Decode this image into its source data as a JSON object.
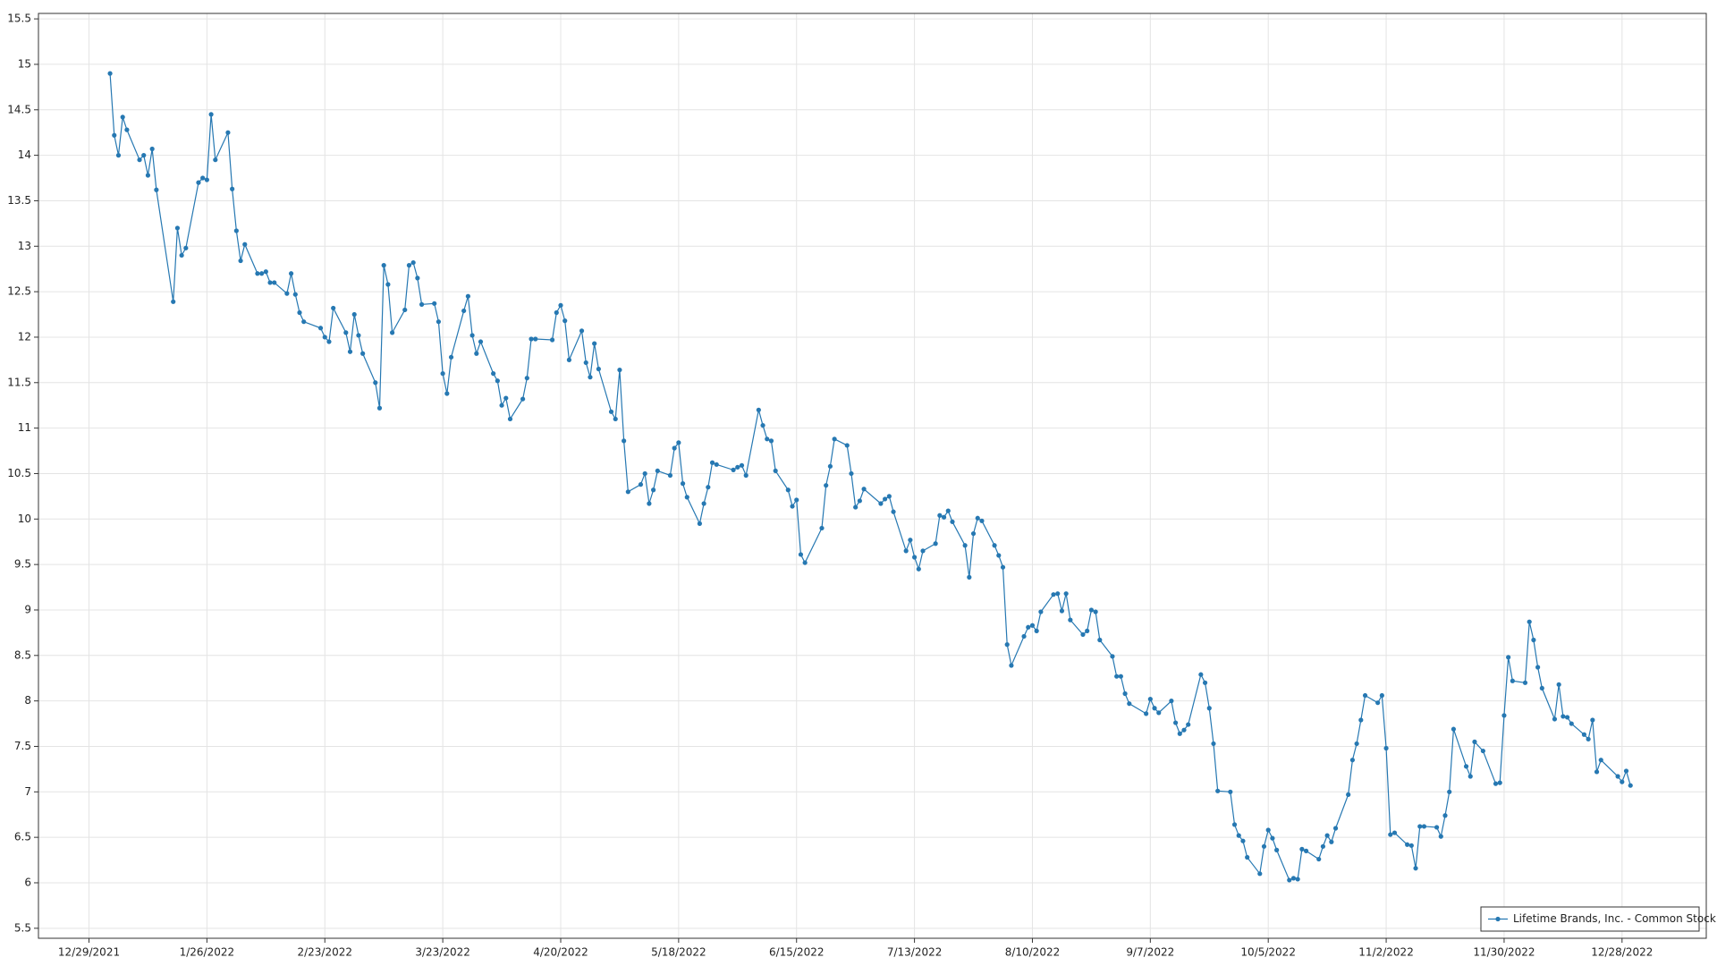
{
  "chart_data": {
    "type": "line",
    "series": [
      {
        "name": "Lifetime Brands, Inc. - Common Stock",
        "color": "#2678b2",
        "x": [
          "1/3/2022",
          "1/4/2022",
          "1/5/2022",
          "1/6/2022",
          "1/7/2022",
          "1/10/2022",
          "1/11/2022",
          "1/12/2022",
          "1/13/2022",
          "1/14/2022",
          "1/18/2022",
          "1/19/2022",
          "1/20/2022",
          "1/21/2022",
          "1/24/2022",
          "1/25/2022",
          "1/26/2022",
          "1/27/2022",
          "1/28/2022",
          "1/31/2022",
          "2/1/2022",
          "2/2/2022",
          "2/3/2022",
          "2/4/2022",
          "2/7/2022",
          "2/8/2022",
          "2/9/2022",
          "2/10/2022",
          "2/11/2022",
          "2/14/2022",
          "2/15/2022",
          "2/16/2022",
          "2/17/2022",
          "2/18/2022",
          "2/22/2022",
          "2/23/2022",
          "2/24/2022",
          "2/25/2022",
          "2/28/2022",
          "3/1/2022",
          "3/2/2022",
          "3/3/2022",
          "3/4/2022",
          "3/7/2022",
          "3/8/2022",
          "3/9/2022",
          "3/10/2022",
          "3/11/2022",
          "3/14/2022",
          "3/15/2022",
          "3/16/2022",
          "3/17/2022",
          "3/18/2022",
          "3/21/2022",
          "3/22/2022",
          "3/23/2022",
          "3/24/2022",
          "3/25/2022",
          "3/28/2022",
          "3/29/2022",
          "3/30/2022",
          "3/31/2022",
          "4/1/2022",
          "4/4/2022",
          "4/5/2022",
          "4/6/2022",
          "4/7/2022",
          "4/8/2022",
          "4/11/2022",
          "4/12/2022",
          "4/13/2022",
          "4/14/2022",
          "4/18/2022",
          "4/19/2022",
          "4/20/2022",
          "4/21/2022",
          "4/22/2022",
          "4/25/2022",
          "4/26/2022",
          "4/27/2022",
          "4/28/2022",
          "4/29/2022",
          "5/2/2022",
          "5/3/2022",
          "5/4/2022",
          "5/5/2022",
          "5/6/2022",
          "5/9/2022",
          "5/10/2022",
          "5/11/2022",
          "5/12/2022",
          "5/13/2022",
          "5/16/2022",
          "5/17/2022",
          "5/18/2022",
          "5/19/2022",
          "5/20/2022",
          "5/23/2022",
          "5/24/2022",
          "5/25/2022",
          "5/26/2022",
          "5/27/2022",
          "5/31/2022",
          "6/1/2022",
          "6/2/2022",
          "6/3/2022",
          "6/6/2022",
          "6/7/2022",
          "6/8/2022",
          "6/9/2022",
          "6/10/2022",
          "6/13/2022",
          "6/14/2022",
          "6/15/2022",
          "6/16/2022",
          "6/17/2022",
          "6/21/2022",
          "6/22/2022",
          "6/23/2022",
          "6/24/2022",
          "6/27/2022",
          "6/28/2022",
          "6/29/2022",
          "6/30/2022",
          "7/1/2022",
          "7/5/2022",
          "7/6/2022",
          "7/7/2022",
          "7/8/2022",
          "7/11/2022",
          "7/12/2022",
          "7/13/2022",
          "7/14/2022",
          "7/15/2022",
          "7/18/2022",
          "7/19/2022",
          "7/20/2022",
          "7/21/2022",
          "7/22/2022",
          "7/25/2022",
          "7/26/2022",
          "7/27/2022",
          "7/28/2022",
          "7/29/2022",
          "8/1/2022",
          "8/2/2022",
          "8/3/2022",
          "8/4/2022",
          "8/5/2022",
          "8/8/2022",
          "8/9/2022",
          "8/10/2022",
          "8/11/2022",
          "8/12/2022",
          "8/15/2022",
          "8/16/2022",
          "8/17/2022",
          "8/18/2022",
          "8/19/2022",
          "8/22/2022",
          "8/23/2022",
          "8/24/2022",
          "8/25/2022",
          "8/26/2022",
          "8/29/2022",
          "8/30/2022",
          "8/31/2022",
          "9/1/2022",
          "9/2/2022",
          "9/6/2022",
          "9/7/2022",
          "9/8/2022",
          "9/9/2022",
          "9/12/2022",
          "9/13/2022",
          "9/14/2022",
          "9/15/2022",
          "9/16/2022",
          "9/19/2022",
          "9/20/2022",
          "9/21/2022",
          "9/22/2022",
          "9/23/2022",
          "9/26/2022",
          "9/27/2022",
          "9/28/2022",
          "9/29/2022",
          "9/30/2022",
          "10/3/2022",
          "10/4/2022",
          "10/5/2022",
          "10/6/2022",
          "10/7/2022",
          "10/10/2022",
          "10/11/2022",
          "10/12/2022",
          "10/13/2022",
          "10/14/2022",
          "10/17/2022",
          "10/18/2022",
          "10/19/2022",
          "10/20/2022",
          "10/21/2022",
          "10/24/2022",
          "10/25/2022",
          "10/26/2022",
          "10/27/2022",
          "10/28/2022",
          "10/31/2022",
          "11/1/2022",
          "11/2/2022",
          "11/3/2022",
          "11/4/2022",
          "11/7/2022",
          "11/8/2022",
          "11/9/2022",
          "11/10/2022",
          "11/11/2022",
          "11/14/2022",
          "11/15/2022",
          "11/16/2022",
          "11/17/2022",
          "11/18/2022",
          "11/21/2022",
          "11/22/2022",
          "11/23/2022",
          "11/25/2022",
          "11/28/2022",
          "11/29/2022",
          "11/30/2022",
          "12/1/2022",
          "12/2/2022",
          "12/5/2022",
          "12/6/2022",
          "12/7/2022",
          "12/8/2022",
          "12/9/2022",
          "12/12/2022",
          "12/13/2022",
          "12/14/2022",
          "12/15/2022",
          "12/16/2022",
          "12/19/2022",
          "12/20/2022",
          "12/21/2022",
          "12/22/2022",
          "12/23/2022",
          "12/27/2022",
          "12/28/2022",
          "12/29/2022",
          "12/30/2022"
        ],
        "values": [
          14.9,
          14.22,
          14.0,
          14.42,
          14.28,
          13.95,
          14.0,
          13.78,
          14.07,
          13.62,
          12.39,
          13.2,
          12.9,
          12.98,
          13.7,
          13.75,
          13.73,
          14.45,
          13.95,
          14.25,
          13.63,
          13.17,
          12.84,
          13.02,
          12.7,
          12.7,
          12.72,
          12.6,
          12.6,
          12.48,
          12.7,
          12.47,
          12.27,
          12.17,
          12.1,
          12.0,
          11.95,
          12.32,
          12.05,
          11.84,
          12.25,
          12.02,
          11.82,
          11.5,
          11.22,
          12.79,
          12.58,
          12.05,
          12.3,
          12.79,
          12.82,
          12.65,
          12.36,
          12.37,
          12.17,
          11.6,
          11.38,
          11.78,
          12.29,
          12.45,
          12.02,
          11.82,
          11.95,
          11.6,
          11.52,
          11.25,
          11.33,
          11.1,
          11.32,
          11.55,
          11.98,
          11.98,
          11.97,
          12.27,
          12.35,
          12.18,
          11.75,
          12.07,
          11.72,
          11.56,
          11.93,
          11.65,
          11.18,
          11.1,
          11.64,
          10.86,
          10.3,
          10.38,
          10.5,
          10.17,
          10.32,
          10.53,
          10.48,
          10.78,
          10.84,
          10.39,
          10.24,
          9.95,
          10.17,
          10.35,
          10.62,
          10.6,
          10.54,
          10.57,
          10.59,
          10.48,
          11.2,
          11.03,
          10.88,
          10.86,
          10.53,
          10.32,
          10.14,
          10.21,
          9.61,
          9.52,
          9.9,
          10.37,
          10.58,
          10.88,
          10.81,
          10.5,
          10.13,
          10.2,
          10.33,
          10.17,
          10.22,
          10.25,
          10.08,
          9.65,
          9.77,
          9.58,
          9.45,
          9.65,
          9.73,
          10.04,
          10.02,
          10.09,
          9.97,
          9.71,
          9.36,
          9.84,
          10.01,
          9.98,
          9.71,
          9.6,
          9.47,
          8.62,
          8.39,
          8.71,
          8.81,
          8.83,
          8.77,
          8.98,
          9.17,
          9.18,
          8.99,
          9.18,
          8.89,
          8.73,
          8.77,
          9.0,
          8.98,
          8.67,
          8.49,
          8.27,
          8.27,
          8.08,
          7.97,
          7.86,
          8.02,
          7.92,
          7.87,
          8.0,
          7.76,
          7.64,
          7.68,
          7.74,
          8.29,
          8.2,
          7.92,
          7.53,
          7.01,
          7.0,
          6.64,
          6.52,
          6.46,
          6.28,
          6.1,
          6.4,
          6.58,
          6.49,
          6.36,
          6.03,
          6.05,
          6.04,
          6.37,
          6.35,
          6.26,
          6.4,
          6.52,
          6.45,
          6.6,
          6.97,
          7.35,
          7.53,
          7.79,
          8.06,
          7.98,
          8.06,
          7.48,
          6.53,
          6.55,
          6.42,
          6.41,
          6.16,
          6.62,
          6.62,
          6.61,
          6.51,
          6.74,
          7.0,
          7.69,
          7.28,
          7.17,
          7.55,
          7.45,
          7.09,
          7.1,
          7.84,
          8.48,
          8.22,
          8.2,
          8.87,
          8.67,
          8.37,
          8.14,
          7.8,
          8.18,
          7.83,
          7.82,
          7.75,
          7.63,
          7.58,
          7.79,
          7.22,
          7.35,
          7.17,
          7.11,
          7.23,
          7.07
        ]
      }
    ],
    "xlim": [
      "12/17/2021",
      "1/17/2023"
    ],
    "xticks": [
      "12/29/2021",
      "1/26/2022",
      "2/23/2022",
      "3/23/2022",
      "4/20/2022",
      "5/18/2022",
      "6/15/2022",
      "7/13/2022",
      "8/10/2022",
      "9/7/2022",
      "10/5/2022",
      "11/2/2022",
      "11/30/2022",
      "12/28/2022"
    ],
    "ylim": [
      5.39,
      15.56
    ],
    "yticks": [
      5.5,
      6,
      6.5,
      7,
      7.5,
      8,
      8.5,
      9,
      9.5,
      10,
      10.5,
      11,
      11.5,
      12,
      12.5,
      13,
      13.5,
      14,
      14.5,
      15,
      15.5
    ],
    "grid": true,
    "legend": "bottom-right"
  }
}
